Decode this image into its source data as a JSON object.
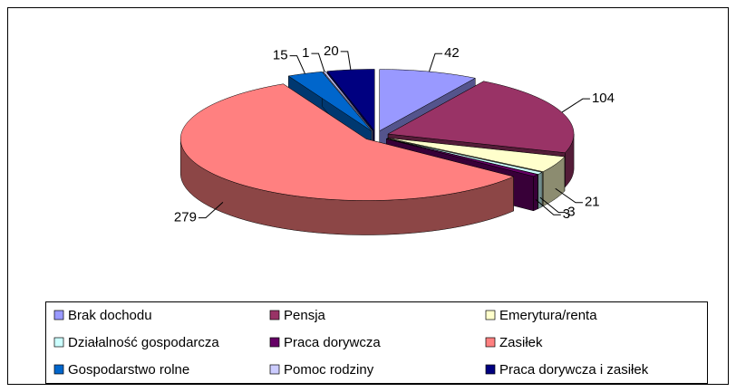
{
  "chart_data": {
    "type": "pie",
    "categories": [
      "Brak dochodu",
      "Pensja",
      "Emerytura/renta",
      "Działalność gospodarcza",
      "Praca dorywcza",
      "Zasiłek",
      "Gospodarstwo rolne",
      "Pomoc rodziny",
      "Praca dorywcza i zasiłek"
    ],
    "values": [
      42,
      104,
      21,
      3,
      3,
      279,
      15,
      1,
      20
    ],
    "colors": [
      "#9999ff",
      "#993366",
      "#ffffcc",
      "#ccffff",
      "#660066",
      "#ff8080",
      "#0066cc",
      "#ccccff",
      "#000080"
    ],
    "legend": "bottom"
  }
}
